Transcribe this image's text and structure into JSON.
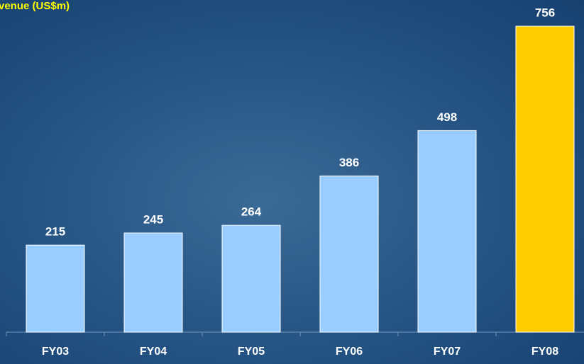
{
  "chart_data": {
    "type": "bar",
    "title": "venue (US$m)",
    "categories": [
      "FY03",
      "FY04",
      "FY05",
      "FY06",
      "FY07",
      "FY08"
    ],
    "values": [
      215,
      245,
      264,
      386,
      498,
      756
    ],
    "colors": [
      "#99ccff",
      "#99ccff",
      "#99ccff",
      "#99ccff",
      "#99ccff",
      "#ffcc00"
    ]
  }
}
